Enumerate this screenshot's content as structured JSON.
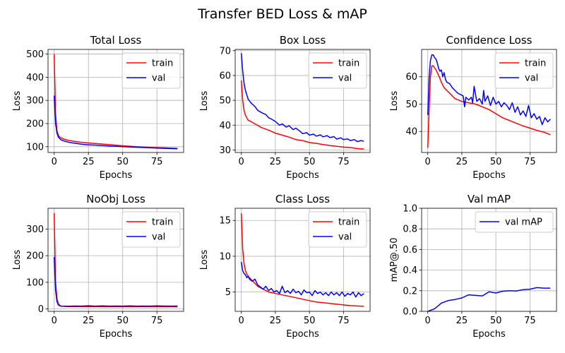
{
  "figure_title": "Transfer BED Loss & mAP",
  "colors": {
    "train": "#ff0000",
    "val": "#0000ff",
    "grid": "#b0b0b0",
    "legend_border": "#cccccc"
  },
  "chart_data": [
    {
      "type": "line",
      "title": "Total Loss",
      "xlabel": "Epochs",
      "ylabel": "Loss",
      "xlim": [
        -4.5,
        94.5
      ],
      "ylim": [
        75,
        520
      ],
      "xticks": [
        0,
        25,
        50,
        75
      ],
      "yticks": [
        100,
        200,
        300,
        400,
        500
      ],
      "grid": true,
      "legend": "top-right",
      "series": [
        {
          "name": "train",
          "color": "#ff0000",
          "x": [
            0,
            1,
            2,
            3,
            4,
            5,
            7,
            10,
            15,
            20,
            25,
            30,
            40,
            50,
            60,
            70,
            80,
            90
          ],
          "y": [
            500,
            240,
            170,
            150,
            142,
            138,
            133,
            128,
            123,
            119,
            116,
            114,
            109,
            104,
            100,
            97,
            95,
            93
          ]
        },
        {
          "name": "val",
          "color": "#0000ff",
          "x": [
            0,
            1,
            2,
            3,
            4,
            5,
            7,
            10,
            15,
            20,
            25,
            30,
            40,
            50,
            60,
            70,
            80,
            90
          ],
          "y": [
            320,
            200,
            160,
            142,
            135,
            130,
            125,
            120,
            115,
            111,
            108,
            107,
            103,
            100,
            98,
            95,
            93,
            91
          ]
        }
      ]
    },
    {
      "type": "line",
      "title": "Box Loss",
      "xlabel": "Epochs",
      "ylabel": "Loss",
      "xlim": [
        -4.5,
        94.5
      ],
      "ylim": [
        29,
        70.5
      ],
      "xticks": [
        0,
        25,
        50,
        75
      ],
      "yticks": [
        30,
        40,
        50,
        60,
        70
      ],
      "grid": true,
      "legend": "top-right",
      "series": [
        {
          "name": "train",
          "color": "#ff0000",
          "x": [
            0,
            1,
            2,
            3,
            5,
            7,
            10,
            15,
            20,
            25,
            30,
            35,
            40,
            45,
            50,
            55,
            60,
            65,
            70,
            75,
            80,
            85,
            90
          ],
          "y": [
            58,
            50,
            46,
            44,
            42,
            41.5,
            40.5,
            39,
            38,
            36.8,
            36,
            35.2,
            34.2,
            33.8,
            33,
            32.7,
            32.2,
            31.8,
            31.5,
            31.2,
            31,
            30.6,
            30.4
          ]
        },
        {
          "name": "val",
          "color": "#0000ff",
          "x": [
            0,
            1,
            2,
            3,
            5,
            7,
            10,
            12,
            15,
            18,
            20,
            22,
            25,
            28,
            30,
            33,
            35,
            38,
            40,
            43,
            45,
            48,
            50,
            53,
            55,
            58,
            60,
            63,
            65,
            68,
            70,
            73,
            75,
            78,
            80,
            83,
            85,
            88,
            90
          ],
          "y": [
            69,
            62,
            57,
            54,
            50.5,
            49,
            47.5,
            46,
            45,
            44.3,
            43,
            42.5,
            41.5,
            40,
            40.5,
            39.2,
            39.8,
            38.2,
            38.8,
            37.6,
            36.6,
            37,
            36,
            36.4,
            35.6,
            36.1,
            35.3,
            35.8,
            35,
            35.4,
            34.4,
            34.9,
            34.2,
            34.5,
            33.8,
            34.2,
            33.4,
            33.8,
            33.5
          ]
        }
      ]
    },
    {
      "type": "line",
      "title": "Confidence Loss",
      "xlabel": "Epochs",
      "ylabel": "Loss",
      "xlim": [
        -4.5,
        94.5
      ],
      "ylim": [
        32.3,
        70
      ],
      "xticks": [
        0,
        25,
        50,
        75
      ],
      "yticks": [
        40,
        50,
        60
      ],
      "grid": true,
      "legend": "top-right",
      "series": [
        {
          "name": "train",
          "color": "#ff0000",
          "x": [
            0,
            1,
            2,
            3,
            4,
            6,
            8,
            10,
            12,
            15,
            20,
            25,
            30,
            35,
            40,
            45,
            50,
            55,
            60,
            65,
            70,
            75,
            80,
            85,
            90
          ],
          "y": [
            34,
            48,
            60,
            64,
            64,
            62.5,
            60.5,
            58,
            56,
            54.5,
            52,
            51,
            50.5,
            50,
            49,
            48,
            46.5,
            45,
            44,
            43,
            42,
            41.2,
            40.4,
            39.8,
            38.8
          ]
        },
        {
          "name": "val",
          "color": "#0000ff",
          "x": [
            0,
            1,
            2,
            3,
            4,
            5,
            6,
            7,
            8,
            9,
            10,
            11,
            12,
            13,
            14,
            16,
            18,
            20,
            22,
            24,
            26,
            27,
            28,
            30,
            32,
            33,
            34,
            36,
            38,
            40,
            41,
            42,
            44,
            46,
            48,
            50,
            52,
            54,
            56,
            58,
            60,
            62,
            64,
            66,
            68,
            70,
            72,
            74,
            76,
            78,
            80,
            82,
            84,
            86,
            88,
            90
          ],
          "y": [
            46,
            60,
            66,
            68,
            68,
            67,
            66.5,
            65,
            63,
            62,
            62.5,
            60,
            61.5,
            59,
            58,
            57.5,
            56,
            55,
            54,
            53.5,
            53,
            49,
            52.5,
            51.5,
            52.5,
            50.5,
            56.5,
            51,
            52,
            50,
            55,
            51,
            53,
            49.5,
            52.5,
            50,
            51,
            49,
            50.5,
            49.5,
            48,
            50.5,
            47,
            49,
            46,
            47.5,
            45.5,
            49.5,
            45,
            46.5,
            44.5,
            45.5,
            42.5,
            45,
            43.5,
            44.5
          ]
        }
      ]
    },
    {
      "type": "line",
      "title": "NoObj Loss",
      "xlabel": "Epochs",
      "ylabel": "Loss",
      "xlim": [
        -4.5,
        94.5
      ],
      "ylim": [
        -9,
        378
      ],
      "xticks": [
        0,
        25,
        50,
        75
      ],
      "yticks": [
        0,
        100,
        200,
        300
      ],
      "grid": true,
      "legend": "top-right",
      "series": [
        {
          "name": "train",
          "color": "#ff0000",
          "x": [
            0,
            1,
            2,
            3,
            4,
            5,
            6,
            8,
            10,
            15,
            20,
            30,
            40,
            50,
            60,
            70,
            80,
            90
          ],
          "y": [
            360,
            100,
            40,
            20,
            14,
            11,
            10,
            9.5,
            9,
            9,
            8.8,
            8.7,
            8.6,
            8.5,
            8.5,
            8.4,
            8.4,
            8.3
          ]
        },
        {
          "name": "val",
          "color": "#0000ff",
          "x": [
            0,
            1,
            2,
            3,
            4,
            5,
            6,
            8,
            10,
            15,
            20,
            25,
            30,
            35,
            40,
            45,
            50,
            55,
            60,
            65,
            70,
            75,
            80,
            85,
            90
          ],
          "y": [
            195,
            70,
            28,
            15,
            12,
            10,
            10,
            10.5,
            10,
            11,
            10.5,
            12,
            10.5,
            11.5,
            10.5,
            11,
            10.5,
            11.5,
            10.5,
            11,
            10.5,
            11.5,
            11,
            10.5,
            11
          ]
        }
      ]
    },
    {
      "type": "line",
      "title": "Class Loss",
      "xlabel": "Epochs",
      "ylabel": "Loss",
      "xlim": [
        -4.5,
        94.5
      ],
      "ylim": [
        2.3,
        16.7
      ],
      "xticks": [
        0,
        25,
        50,
        75
      ],
      "yticks": [
        5,
        10,
        15
      ],
      "grid": true,
      "legend": "top-right",
      "series": [
        {
          "name": "train",
          "color": "#ff0000",
          "x": [
            0,
            1,
            2,
            3,
            4,
            6,
            8,
            10,
            12,
            15,
            20,
            25,
            30,
            35,
            40,
            45,
            50,
            55,
            60,
            65,
            70,
            75,
            80,
            85,
            90
          ],
          "y": [
            16,
            11,
            9,
            8,
            7.5,
            7,
            6.6,
            6.2,
            5.8,
            5.5,
            5,
            4.8,
            4.6,
            4.4,
            4.2,
            4,
            3.8,
            3.6,
            3.5,
            3.4,
            3.3,
            3.2,
            3.1,
            3.05,
            3
          ]
        },
        {
          "name": "val",
          "color": "#0000ff",
          "x": [
            0,
            1,
            2,
            3,
            4,
            5,
            6,
            8,
            10,
            12,
            14,
            16,
            18,
            20,
            22,
            24,
            26,
            28,
            30,
            32,
            34,
            36,
            38,
            40,
            42,
            44,
            46,
            48,
            50,
            52,
            54,
            56,
            58,
            60,
            62,
            64,
            66,
            68,
            70,
            72,
            74,
            76,
            78,
            80,
            82,
            84,
            86,
            88,
            90
          ],
          "y": [
            9.2,
            8,
            7.6,
            7.4,
            7,
            7.2,
            6.8,
            6.5,
            6.8,
            6,
            5.7,
            5.4,
            5.8,
            5.2,
            5.5,
            5,
            5.2,
            4.8,
            5.8,
            4.9,
            5.2,
            4.8,
            5.4,
            4.9,
            5.1,
            4.6,
            5.3,
            4.9,
            5,
            4.5,
            5.2,
            4.8,
            5,
            4.6,
            4.9,
            4.5,
            5,
            4.6,
            4.9,
            4.5,
            5,
            4.4,
            4.8,
            4.6,
            5,
            4.3,
            4.9,
            4.5,
            4.8
          ]
        }
      ]
    },
    {
      "type": "line",
      "title": "Val mAP",
      "xlabel": "Epochs",
      "ylabel": "mAP@.50",
      "xlim": [
        -4.5,
        94.5
      ],
      "ylim": [
        0,
        1.0
      ],
      "xticks": [
        0,
        25,
        50,
        75
      ],
      "yticks": [
        0.0,
        0.2,
        0.4,
        0.6,
        0.8,
        1.0
      ],
      "ytick_labels": [
        "0.0",
        "0.2",
        "0.4",
        "0.6",
        "0.8",
        "1.0"
      ],
      "grid": true,
      "legend": "top-right",
      "series": [
        {
          "name": "val mAP",
          "color": "#0000ff",
          "x": [
            0,
            5,
            10,
            15,
            20,
            25,
            30,
            35,
            40,
            45,
            50,
            55,
            60,
            65,
            70,
            75,
            80,
            85,
            90
          ],
          "y": [
            0,
            0.025,
            0.08,
            0.105,
            0.115,
            0.13,
            0.16,
            0.155,
            0.15,
            0.19,
            0.178,
            0.195,
            0.2,
            0.198,
            0.21,
            0.215,
            0.23,
            0.225,
            0.225
          ]
        }
      ]
    }
  ]
}
